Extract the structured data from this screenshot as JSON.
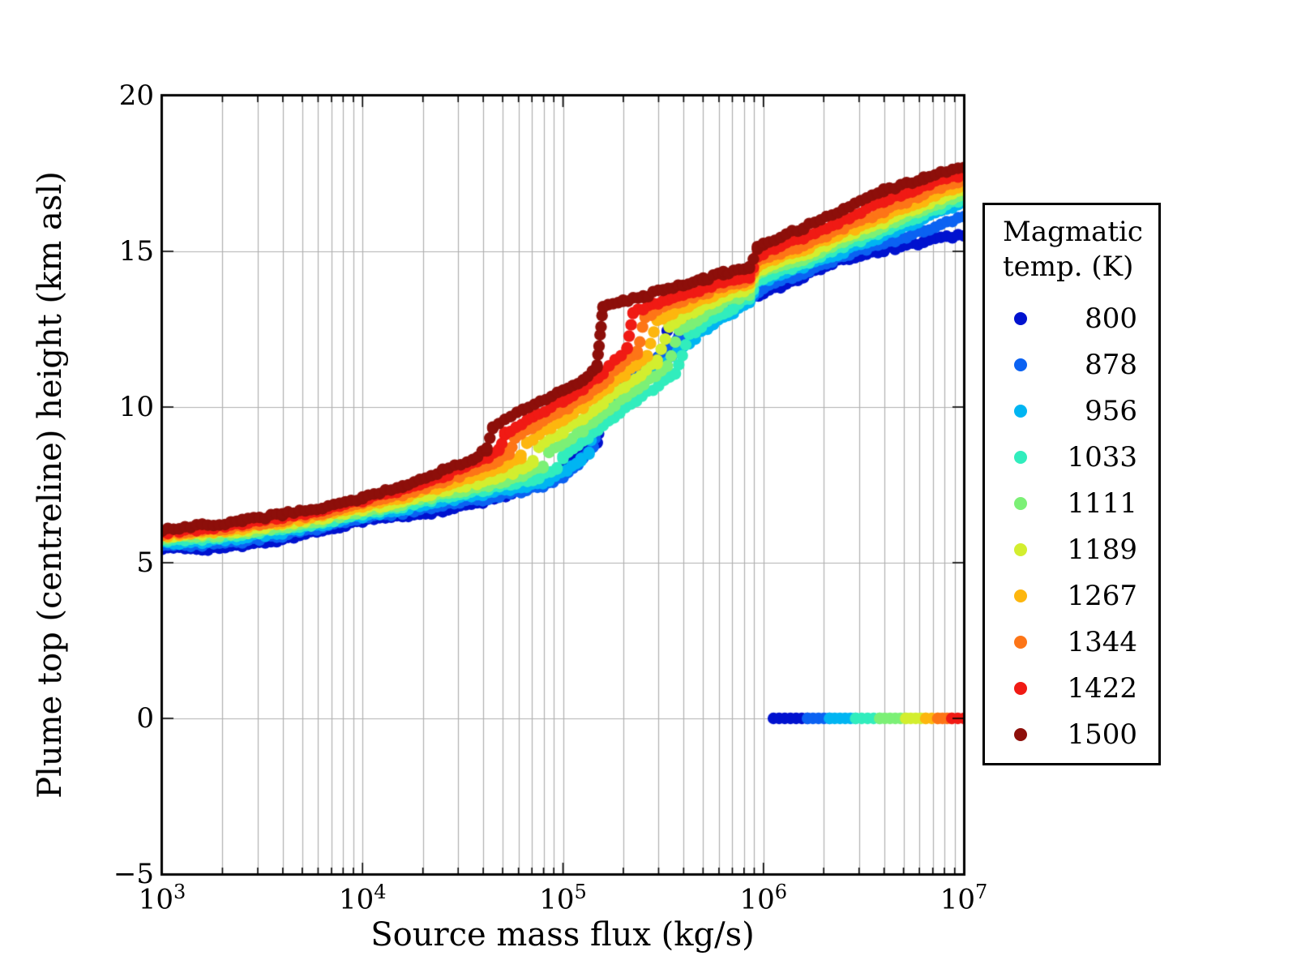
{
  "axes": {
    "xlabel": "Source mass flux (kg/s)",
    "ylabel": "Plume top (centreline) height (km asl)",
    "spine_color": "#000000",
    "grid_color": "#b0b0b0",
    "background": "#ffffff"
  },
  "legend": {
    "title_line1": "Magmatic",
    "title_line2": "temp. (K)"
  },
  "chart_data": {
    "type": "scatter",
    "title": "",
    "xlabel": "Source mass flux (kg/s)",
    "ylabel": "Plume top (centreline) height (km asl)",
    "x_scale": "log10",
    "xlim_log10": [
      3,
      7
    ],
    "ylim": [
      -5,
      20
    ],
    "yticks": [
      20,
      15,
      10,
      5,
      0,
      -5
    ],
    "ytick_labels": [
      "20",
      "15",
      "10",
      "5",
      "0",
      "−5"
    ],
    "xtick_decades": [
      3,
      4,
      5,
      6,
      7
    ],
    "grid": true,
    "legend_title": [
      "Magmatic",
      "temp. (K)"
    ],
    "legend_position": "right-outside",
    "marker": "circle",
    "series": [
      {
        "name": "800",
        "temp_K": 800,
        "color": "#0012cf",
        "points": [
          [
            3.0,
            5.45
          ],
          [
            3.2,
            5.45
          ],
          [
            3.4,
            5.53
          ],
          [
            3.6,
            5.76
          ],
          [
            3.8,
            6.05
          ],
          [
            4.0,
            6.36
          ],
          [
            4.2,
            6.5
          ],
          [
            4.4,
            6.66
          ],
          [
            4.6,
            6.95
          ],
          [
            4.8,
            7.35
          ],
          [
            5.0,
            8.0
          ],
          [
            5.1,
            8.5
          ],
          [
            5.17,
            8.85
          ],
          [
            5.2,
            10.15
          ],
          [
            5.3,
            10.5
          ],
          [
            5.4,
            11.1
          ],
          [
            5.5,
            11.8
          ],
          [
            5.6,
            12.2
          ],
          [
            5.7,
            12.75
          ],
          [
            5.8,
            13.0
          ],
          [
            5.9,
            13.4
          ],
          [
            6.0,
            13.65
          ],
          [
            6.2,
            14.2
          ],
          [
            6.4,
            14.75
          ],
          [
            6.6,
            15.05
          ],
          [
            6.8,
            15.3
          ],
          [
            7.0,
            15.55
          ]
        ],
        "noise_points": [
          [
            5.52,
            12.45
          ],
          [
            5.55,
            12.7
          ],
          [
            5.58,
            12.3
          ],
          [
            5.62,
            12.8
          ],
          [
            5.66,
            12.55
          ],
          [
            5.7,
            12.9
          ],
          [
            5.73,
            12.6
          ]
        ]
      },
      {
        "name": "878",
        "temp_K": 878,
        "color": "#0b62f2",
        "points": [
          [
            3.0,
            5.54
          ],
          [
            3.2,
            5.57
          ],
          [
            3.4,
            5.68
          ],
          [
            3.6,
            5.88
          ],
          [
            3.8,
            6.14
          ],
          [
            4.0,
            6.43
          ],
          [
            4.2,
            6.62
          ],
          [
            4.4,
            6.85
          ],
          [
            4.6,
            7.05
          ],
          [
            4.9,
            7.45
          ],
          [
            5.0,
            7.75
          ],
          [
            5.1,
            8.35
          ],
          [
            5.15,
            8.7
          ],
          [
            5.18,
            9.7
          ],
          [
            5.3,
            10.7
          ],
          [
            5.45,
            11.4
          ],
          [
            5.6,
            12.35
          ],
          [
            5.75,
            12.85
          ],
          [
            5.85,
            13.15
          ],
          [
            5.95,
            13.55
          ],
          [
            6.0,
            13.85
          ],
          [
            6.2,
            14.3
          ],
          [
            6.4,
            14.85
          ],
          [
            6.6,
            15.25
          ],
          [
            6.8,
            15.65
          ],
          [
            7.0,
            16.1
          ]
        ]
      },
      {
        "name": "956",
        "temp_K": 956,
        "color": "#00b5f2",
        "points": [
          [
            3.0,
            5.63
          ],
          [
            3.2,
            5.68
          ],
          [
            3.4,
            5.8
          ],
          [
            3.6,
            5.98
          ],
          [
            3.8,
            6.22
          ],
          [
            4.0,
            6.5
          ],
          [
            4.2,
            6.72
          ],
          [
            4.4,
            6.98
          ],
          [
            4.6,
            7.2
          ],
          [
            4.9,
            7.55
          ],
          [
            5.02,
            7.95
          ],
          [
            5.09,
            8.3
          ],
          [
            5.13,
            8.55
          ],
          [
            5.16,
            9.5
          ],
          [
            5.25,
            10.0
          ],
          [
            5.4,
            10.75
          ],
          [
            5.6,
            11.9
          ],
          [
            5.75,
            12.7
          ],
          [
            5.85,
            13.05
          ],
          [
            5.93,
            13.35
          ],
          [
            5.97,
            14.0
          ],
          [
            6.2,
            14.5
          ],
          [
            6.4,
            15.0
          ],
          [
            6.6,
            15.5
          ],
          [
            6.8,
            16.05
          ],
          [
            7.0,
            16.55
          ]
        ]
      },
      {
        "name": "1033",
        "temp_K": 1033,
        "color": "#31edbd",
        "points": [
          [
            3.0,
            5.72
          ],
          [
            3.2,
            5.78
          ],
          [
            3.4,
            5.9
          ],
          [
            3.6,
            6.08
          ],
          [
            3.8,
            6.3
          ],
          [
            4.0,
            6.58
          ],
          [
            4.2,
            6.82
          ],
          [
            4.4,
            7.1
          ],
          [
            4.6,
            7.35
          ],
          [
            4.85,
            7.68
          ],
          [
            4.97,
            8.0
          ],
          [
            5.0,
            8.4
          ],
          [
            5.1,
            8.9
          ],
          [
            5.2,
            9.45
          ],
          [
            5.56,
            11.1
          ],
          [
            5.63,
            12.3
          ],
          [
            5.75,
            12.85
          ],
          [
            5.85,
            13.2
          ],
          [
            5.93,
            13.5
          ],
          [
            5.97,
            14.1
          ],
          [
            6.2,
            14.6
          ],
          [
            6.4,
            15.15
          ],
          [
            6.6,
            15.65
          ],
          [
            6.8,
            16.2
          ],
          [
            7.0,
            16.7
          ]
        ]
      },
      {
        "name": "1111",
        "temp_K": 1111,
        "color": "#7cf076",
        "points": [
          [
            3.0,
            5.78
          ],
          [
            3.2,
            5.85
          ],
          [
            3.4,
            5.97
          ],
          [
            3.6,
            6.15
          ],
          [
            3.8,
            6.38
          ],
          [
            4.0,
            6.65
          ],
          [
            4.2,
            6.9
          ],
          [
            4.4,
            7.2
          ],
          [
            4.6,
            7.45
          ],
          [
            4.8,
            7.8
          ],
          [
            4.9,
            8.1
          ],
          [
            4.93,
            8.55
          ],
          [
            5.1,
            9.25
          ],
          [
            5.2,
            9.8
          ],
          [
            5.52,
            11.3
          ],
          [
            5.58,
            12.45
          ],
          [
            5.7,
            12.95
          ],
          [
            5.8,
            13.35
          ],
          [
            5.93,
            13.65
          ],
          [
            5.97,
            14.25
          ],
          [
            6.2,
            14.75
          ],
          [
            6.4,
            15.3
          ],
          [
            6.6,
            15.8
          ],
          [
            6.8,
            16.35
          ],
          [
            7.0,
            16.85
          ]
        ]
      },
      {
        "name": "1189",
        "temp_K": 1189,
        "color": "#d3ee2f",
        "points": [
          [
            3.0,
            5.83
          ],
          [
            3.2,
            5.91
          ],
          [
            3.4,
            6.03
          ],
          [
            3.6,
            6.22
          ],
          [
            3.8,
            6.45
          ],
          [
            4.0,
            6.72
          ],
          [
            4.2,
            6.98
          ],
          [
            4.4,
            7.32
          ],
          [
            4.6,
            7.6
          ],
          [
            4.75,
            7.9
          ],
          [
            4.85,
            8.25
          ],
          [
            4.88,
            8.7
          ],
          [
            5.0,
            9.2
          ],
          [
            5.1,
            9.65
          ],
          [
            5.2,
            10.15
          ],
          [
            5.47,
            11.45
          ],
          [
            5.53,
            12.6
          ],
          [
            5.65,
            13.05
          ],
          [
            5.8,
            13.55
          ],
          [
            5.93,
            13.8
          ],
          [
            5.97,
            14.4
          ],
          [
            6.2,
            14.9
          ],
          [
            6.4,
            15.45
          ],
          [
            6.6,
            15.95
          ],
          [
            6.8,
            16.5
          ],
          [
            7.0,
            17.0
          ]
        ]
      },
      {
        "name": "1267",
        "temp_K": 1267,
        "color": "#fdb60e",
        "points": [
          [
            3.0,
            5.88
          ],
          [
            3.2,
            5.97
          ],
          [
            3.4,
            6.1
          ],
          [
            3.6,
            6.3
          ],
          [
            3.8,
            6.52
          ],
          [
            4.0,
            6.8
          ],
          [
            4.2,
            7.08
          ],
          [
            4.4,
            7.45
          ],
          [
            4.7,
            8.05
          ],
          [
            4.79,
            8.4
          ],
          [
            4.82,
            8.85
          ],
          [
            5.0,
            9.6
          ],
          [
            5.1,
            10.0
          ],
          [
            5.2,
            10.5
          ],
          [
            5.42,
            11.6
          ],
          [
            5.47,
            12.75
          ],
          [
            5.6,
            13.2
          ],
          [
            5.7,
            13.45
          ],
          [
            5.8,
            13.75
          ],
          [
            5.93,
            13.95
          ],
          [
            5.97,
            14.55
          ],
          [
            6.2,
            15.05
          ],
          [
            6.4,
            15.6
          ],
          [
            6.6,
            16.1
          ],
          [
            6.8,
            16.65
          ],
          [
            7.0,
            17.15
          ]
        ]
      },
      {
        "name": "1344",
        "temp_K": 1344,
        "color": "#fd7517",
        "points": [
          [
            3.0,
            5.92
          ],
          [
            3.2,
            6.03
          ],
          [
            3.4,
            6.18
          ],
          [
            3.6,
            6.38
          ],
          [
            3.8,
            6.6
          ],
          [
            4.0,
            6.9
          ],
          [
            4.2,
            7.2
          ],
          [
            4.4,
            7.6
          ],
          [
            4.65,
            8.2
          ],
          [
            4.73,
            8.5
          ],
          [
            4.76,
            9.0
          ],
          [
            4.9,
            9.55
          ],
          [
            5.0,
            9.9
          ],
          [
            5.1,
            10.3
          ],
          [
            5.2,
            10.8
          ],
          [
            5.37,
            11.75
          ],
          [
            5.41,
            12.9
          ],
          [
            5.5,
            13.2
          ],
          [
            5.6,
            13.45
          ],
          [
            5.7,
            13.65
          ],
          [
            5.8,
            13.9
          ],
          [
            5.93,
            14.05
          ],
          [
            5.97,
            14.7
          ],
          [
            6.2,
            15.2
          ],
          [
            6.4,
            15.75
          ],
          [
            6.6,
            16.3
          ],
          [
            6.8,
            16.85
          ],
          [
            7.0,
            17.3
          ]
        ]
      },
      {
        "name": "1422",
        "temp_K": 1422,
        "color": "#f01a14",
        "points": [
          [
            3.0,
            5.98
          ],
          [
            3.2,
            6.1
          ],
          [
            3.4,
            6.26
          ],
          [
            3.6,
            6.46
          ],
          [
            3.8,
            6.7
          ],
          [
            4.0,
            7.0
          ],
          [
            4.2,
            7.33
          ],
          [
            4.4,
            7.78
          ],
          [
            4.6,
            8.3
          ],
          [
            4.68,
            8.6
          ],
          [
            4.71,
            9.15
          ],
          [
            4.85,
            9.7
          ],
          [
            5.0,
            10.2
          ],
          [
            5.1,
            10.6
          ],
          [
            5.2,
            11.1
          ],
          [
            5.32,
            11.9
          ],
          [
            5.35,
            13.05
          ],
          [
            5.45,
            13.3
          ],
          [
            5.55,
            13.5
          ],
          [
            5.65,
            13.7
          ],
          [
            5.8,
            14.0
          ],
          [
            5.93,
            14.2
          ],
          [
            5.97,
            14.85
          ],
          [
            6.2,
            15.45
          ],
          [
            6.4,
            16.0
          ],
          [
            6.6,
            16.6
          ],
          [
            6.8,
            17.1
          ],
          [
            7.0,
            17.5
          ]
        ]
      },
      {
        "name": "1500",
        "temp_K": 1500,
        "color": "#8d0f0a",
        "points": [
          [
            3.0,
            6.05
          ],
          [
            3.2,
            6.18
          ],
          [
            3.4,
            6.35
          ],
          [
            3.6,
            6.55
          ],
          [
            3.8,
            6.78
          ],
          [
            4.0,
            7.08
          ],
          [
            4.2,
            7.45
          ],
          [
            4.4,
            7.95
          ],
          [
            4.55,
            8.35
          ],
          [
            4.62,
            8.65
          ],
          [
            4.65,
            9.3
          ],
          [
            4.8,
            9.95
          ],
          [
            5.0,
            10.5
          ],
          [
            5.1,
            10.9
          ],
          [
            5.17,
            11.3
          ],
          [
            5.2,
            13.25
          ],
          [
            5.3,
            13.4
          ],
          [
            5.4,
            13.55
          ],
          [
            5.5,
            13.75
          ],
          [
            5.6,
            13.95
          ],
          [
            5.7,
            14.1
          ],
          [
            5.8,
            14.3
          ],
          [
            5.93,
            14.5
          ],
          [
            5.97,
            15.1
          ],
          [
            6.0,
            15.25
          ],
          [
            6.2,
            15.75
          ],
          [
            6.4,
            16.35
          ],
          [
            6.6,
            16.95
          ],
          [
            6.8,
            17.35
          ],
          [
            7.0,
            17.7
          ]
        ]
      }
    ],
    "collapse_floor": {
      "height_km": 0,
      "segments": [
        {
          "temp_K": 800,
          "log10_flux": [
            6.05,
            6.22
          ]
        },
        {
          "temp_K": 878,
          "log10_flux": [
            6.22,
            6.33
          ]
        },
        {
          "temp_K": 956,
          "log10_flux": [
            6.33,
            6.46
          ]
        },
        {
          "temp_K": 1033,
          "log10_flux": [
            6.46,
            6.58
          ]
        },
        {
          "temp_K": 1111,
          "log10_flux": [
            6.58,
            6.71
          ]
        },
        {
          "temp_K": 1189,
          "log10_flux": [
            6.71,
            6.81
          ]
        },
        {
          "temp_K": 1267,
          "log10_flux": [
            6.81,
            6.87
          ]
        },
        {
          "temp_K": 1344,
          "log10_flux": [
            6.87,
            6.94
          ]
        },
        {
          "temp_K": 1422,
          "log10_flux": [
            6.94,
            7.0
          ]
        }
      ]
    }
  }
}
